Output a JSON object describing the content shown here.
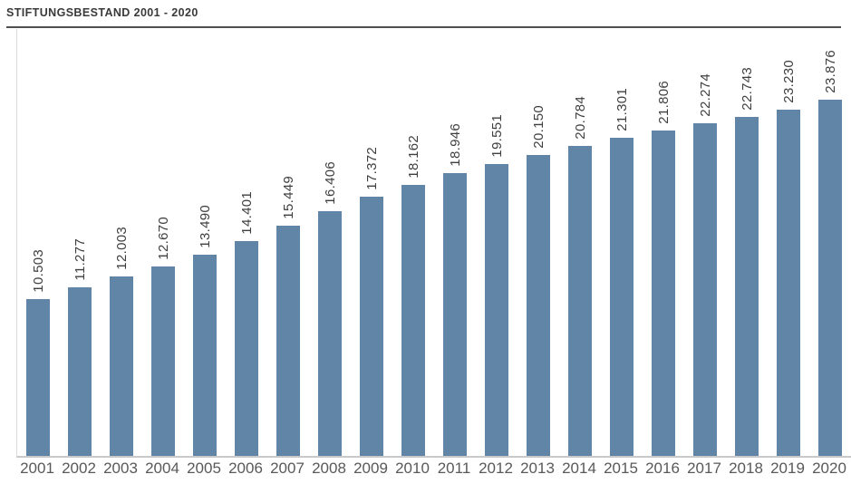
{
  "header": {
    "title": "STIFTUNGSBESTAND 2001 - 2020"
  },
  "chart_data": {
    "type": "bar",
    "title": "STIFTUNGSBESTAND 2001 - 2020",
    "categories": [
      "2001",
      "2002",
      "2003",
      "2004",
      "2005",
      "2006",
      "2007",
      "2008",
      "2009",
      "2010",
      "2011",
      "2012",
      "2013",
      "2014",
      "2015",
      "2016",
      "2017",
      "2018",
      "2019",
      "2020"
    ],
    "values": [
      10503,
      11277,
      12003,
      12670,
      13490,
      14401,
      15449,
      16406,
      17372,
      18162,
      18946,
      19551,
      20150,
      20784,
      21301,
      21806,
      22274,
      22743,
      23230,
      23876
    ],
    "value_labels": [
      "10.503",
      "11.277",
      "12.003",
      "12.670",
      "13.490",
      "14.401",
      "15.449",
      "16.406",
      "17.372",
      "18.162",
      "18.946",
      "19.551",
      "20.150",
      "20.784",
      "21.301",
      "21.806",
      "22.274",
      "22.743",
      "23.230",
      "23.876"
    ],
    "xlabel": "",
    "ylabel": "",
    "ylim": [
      0,
      24000
    ],
    "grid": false,
    "legend": false,
    "value_label_rotation_deg": 90,
    "colors": {
      "bar": "#6085a6",
      "value_label_text": "#3f3f3f",
      "tick_label_text": "#595959",
      "title_text": "#3a3a3a",
      "title_rule": "#4f4f4f",
      "baseline": "#c9c9c9",
      "y_axis_line": "#dcdcdc",
      "background": "#ffffff"
    }
  }
}
